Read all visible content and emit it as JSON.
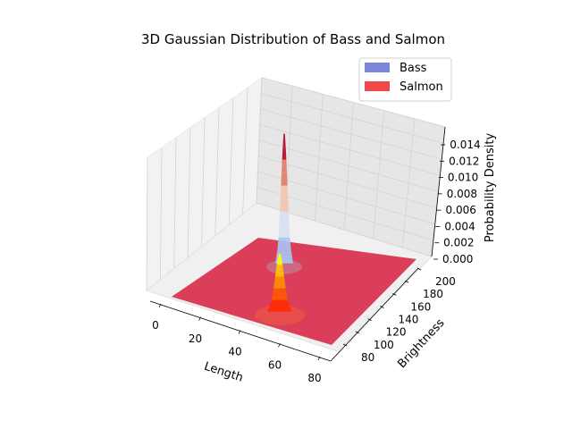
{
  "chart_data": {
    "type": "surface3d",
    "title": "3D Gaussian Distribution of Bass and Salmon",
    "xlabel": "Length",
    "ylabel": "Brightness",
    "zlabel": "Probability Density",
    "x_ticks": [
      "0",
      "20",
      "40",
      "60",
      "80"
    ],
    "y_ticks": [
      "80",
      "100",
      "120",
      "140",
      "160",
      "180",
      "200"
    ],
    "z_ticks": [
      "0.000",
      "0.002",
      "0.004",
      "0.006",
      "0.008",
      "0.010",
      "0.012",
      "0.014"
    ],
    "xlim": [
      0,
      80
    ],
    "ylim": [
      80,
      200
    ],
    "zlim": [
      0,
      0.015
    ],
    "grid": true,
    "legend_position": "top-right",
    "series": [
      {
        "name": "Bass",
        "distribution": "gaussian",
        "mean_length": 22,
        "mean_brightness": 175,
        "peak_density": 0.0145,
        "color": "#7b86db",
        "surface_colormap": "coolwarm"
      },
      {
        "name": "Salmon",
        "distribution": "gaussian",
        "mean_length": 45,
        "mean_brightness": 105,
        "peak_density": 0.0065,
        "color": "#f04848",
        "surface_colormap": "autumn"
      }
    ]
  }
}
